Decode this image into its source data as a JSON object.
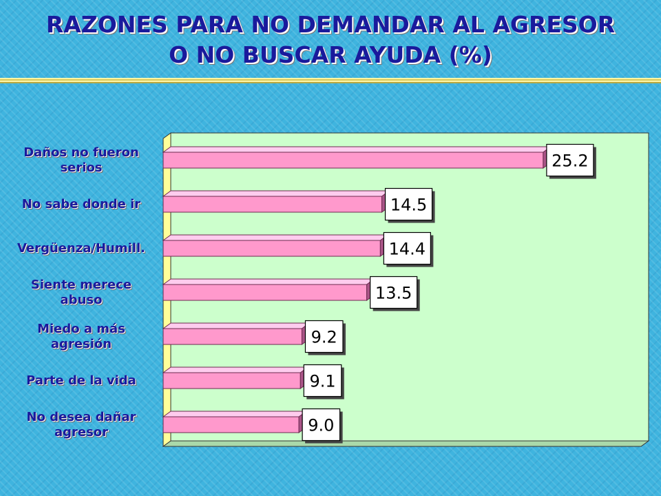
{
  "slide": {
    "title_line1": "RAZONES PARA NO DEMANDAR AL AGRESOR",
    "title_line2": "O NO BUSCAR AYUDA (%)"
  },
  "colors": {
    "background": "#3fb4df",
    "title": "#1a1a9c",
    "plot_area": "#ccffcc",
    "bar_front": "#ff99cc",
    "bar_top": "#ffccee",
    "bar_side": "#aa5588"
  },
  "chart_data": {
    "type": "bar",
    "orientation": "horizontal",
    "title": "RAZONES PARA NO DEMANDAR AL AGRESOR O NO BUSCAR AYUDA (%)",
    "categories": [
      "Daños no fueron serios",
      "No sabe donde ir",
      "Vergüenza/Humill.",
      "Siente merece abuso",
      "Miedo a más agresión",
      "Parte de la vida",
      "No desea dañar agresor"
    ],
    "category_labels": [
      "Daños no fueron\nserios",
      "No sabe donde ir",
      "Vergüenza/Humill.",
      "Siente merece\nabuso",
      "Miedo a más\nagresión",
      "Parte de la vida",
      "No desea dañar\nagresor"
    ],
    "values": [
      25.2,
      14.5,
      14.4,
      13.5,
      9.2,
      9.1,
      9.0
    ],
    "value_labels": [
      "25.2",
      "14.5",
      "14.4",
      "13.5",
      "9.2",
      "9.1",
      "9.0"
    ],
    "xlim": [
      0,
      30
    ],
    "xlabel": "",
    "ylabel": "",
    "grid": false,
    "legend": "none",
    "style": "3d"
  }
}
